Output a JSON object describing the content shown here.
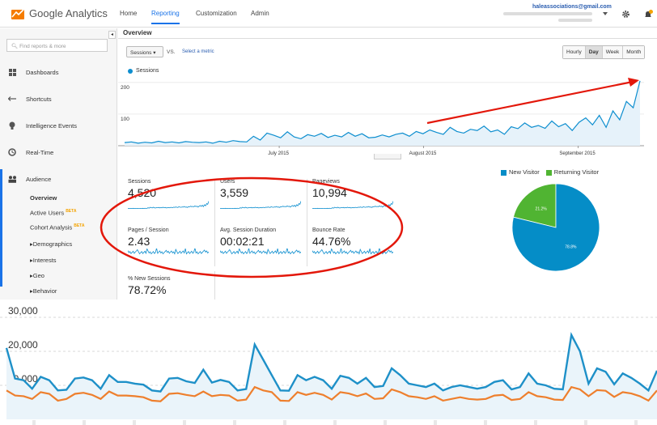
{
  "app": {
    "name": "Google Analytics"
  },
  "topnav": {
    "home": "Home",
    "reporting": "Reporting",
    "customization": "Customization",
    "admin": "Admin"
  },
  "account": {
    "email": "haleassociations@gmail.com",
    "notification_count": "1"
  },
  "sidebar": {
    "search_placeholder": "Find reports & more",
    "items": [
      "Dashboards",
      "Shortcuts",
      "Intelligence Events",
      "Real-Time",
      "Audience"
    ],
    "audience_sub": [
      "Overview",
      "Active Users",
      "Cohort Analysis",
      "Demographics",
      "Interests",
      "Geo",
      "Behavior"
    ],
    "beta_label": "BETA"
  },
  "overview": {
    "title": "Overview",
    "metric_dropdown": "Sessions",
    "vs_label": "VS.",
    "select_metric": "Select a metric",
    "time_buttons": [
      "Hourly",
      "Day",
      "Week",
      "Month"
    ],
    "active_time": "Day",
    "chart_legend": "Sessions"
  },
  "metrics": [
    {
      "label": "Sessions",
      "value": "4,520"
    },
    {
      "label": "Users",
      "value": "3,559"
    },
    {
      "label": "Pageviews",
      "value": "10,994"
    },
    {
      "label": "Pages / Session",
      "value": "2.43"
    },
    {
      "label": "Avg. Session Duration",
      "value": "00:02:21"
    },
    {
      "label": "Bounce Rate",
      "value": "44.76%"
    },
    {
      "label": "% New Sessions",
      "value": "78.72%"
    }
  ],
  "pie": {
    "legend": [
      "New Visitor",
      "Returning Visitor"
    ],
    "slices": [
      78.8,
      21.2
    ],
    "labels": [
      "78.8%",
      "21.2%"
    ],
    "colors": [
      "#058dc7",
      "#50b432"
    ]
  },
  "colors": {
    "accent": "#1a73e8",
    "series": "#0d8ecf",
    "annotation_red": "#e3170a",
    "orange_series": "#ee7f2d"
  },
  "chart_data": [
    {
      "type": "area",
      "title": "",
      "series": [
        {
          "name": "Sessions",
          "values": [
            10,
            12,
            8,
            11,
            9,
            14,
            10,
            12,
            9,
            13,
            11,
            10,
            12,
            8,
            14,
            11,
            16,
            13,
            12,
            30,
            18,
            40,
            33,
            25,
            44,
            28,
            22,
            35,
            30,
            39,
            26,
            33,
            28,
            42,
            30,
            38,
            25,
            27,
            34,
            28,
            36,
            40,
            30,
            45,
            38,
            50,
            42,
            36,
            58,
            45,
            40,
            52,
            48,
            62,
            44,
            50,
            36,
            60,
            54,
            72,
            58,
            64,
            55,
            78,
            60,
            70,
            48,
            74,
            88,
            66,
            96,
            58,
            110,
            82,
            140,
            120,
            205
          ]
        }
      ],
      "x_tick_labels": [
        "July 2015",
        "August 2015",
        "September 2015"
      ],
      "y_tick_labels": [
        "200",
        "100"
      ],
      "ylim": [
        0,
        215
      ],
      "annotation": "red upward trend arrow"
    },
    {
      "type": "line",
      "title": "",
      "y_tick_labels": [
        "30,000",
        "20,000",
        "10,000"
      ],
      "ylim": [
        0,
        32000
      ],
      "series": [
        {
          "values": [
            21000,
            12000,
            11500,
            9000,
            12500,
            11500,
            8500,
            8700,
            12000,
            12300,
            11500,
            9000,
            13000,
            11000,
            11000,
            10500,
            10200,
            8500,
            8200,
            12000,
            12200,
            11200,
            10700,
            14600,
            10800,
            11600,
            11000,
            8500,
            8900,
            22000,
            17500,
            13000,
            8500,
            8400,
            13000,
            11500,
            12500,
            11500,
            9000,
            12800,
            12200,
            10500,
            12200,
            9500,
            9800,
            15000,
            13000,
            10500,
            10000,
            9500,
            10500,
            8500,
            9500,
            10000,
            9500,
            9000,
            9500,
            11000,
            11500,
            8800,
            9500,
            13500,
            10500,
            10000,
            9000,
            8800,
            24800,
            20000,
            10500,
            15000,
            14000,
            10300,
            13500,
            12200,
            10500,
            8500,
            14300
          ]
        },
        {
          "values": [
            8500,
            7000,
            6800,
            6000,
            8000,
            7500,
            5500,
            6000,
            7500,
            7800,
            7200,
            6000,
            8200,
            7000,
            7000,
            6800,
            6500,
            5500,
            5300,
            7500,
            7700,
            7200,
            6800,
            8200,
            6800,
            7200,
            7000,
            5500,
            5800,
            9500,
            8500,
            8000,
            5500,
            5400,
            8000,
            7200,
            7800,
            7200,
            5800,
            8000,
            7600,
            6800,
            7600,
            6000,
            6200,
            8800,
            8000,
            6800,
            6500,
            6000,
            6800,
            5500,
            6000,
            6500,
            6000,
            5800,
            6000,
            7000,
            7200,
            5700,
            6000,
            8000,
            6800,
            6500,
            5800,
            5700,
            9500,
            8800,
            6800,
            8600,
            8400,
            6600,
            8000,
            7600,
            6800,
            5500,
            8500
          ]
        }
      ]
    }
  ]
}
